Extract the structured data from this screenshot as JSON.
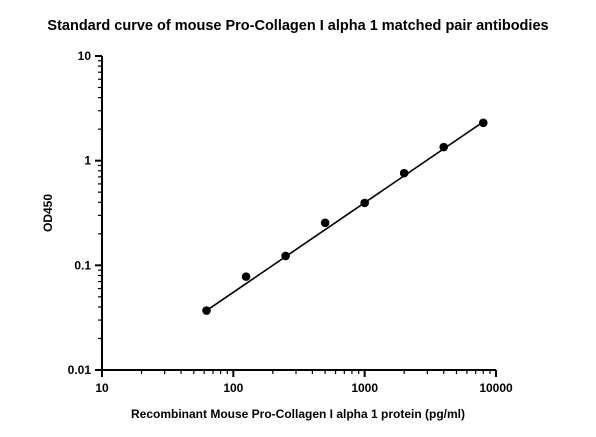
{
  "chart_data": {
    "type": "scatter",
    "title": "Standard curve of mouse Pro-Collagen I alpha 1 matched pair antibodies",
    "xlabel": "Recombinant Mouse Pro-Collagen I alpha 1 protein (pg/ml)",
    "ylabel": "OD450",
    "x_scale": "log",
    "y_scale": "log",
    "xlim": [
      10,
      10000
    ],
    "ylim": [
      0.01,
      10
    ],
    "x_ticks": [
      "10",
      "100",
      "1000",
      "10000"
    ],
    "y_ticks": [
      "0.01",
      "0.1",
      "1",
      "10"
    ],
    "grid": false,
    "series": [
      {
        "x": [
          62.5,
          125,
          250,
          500,
          1000,
          2000,
          4000,
          8000
        ],
        "y": [
          0.037,
          0.078,
          0.123,
          0.255,
          0.395,
          0.76,
          1.35,
          2.3
        ]
      }
    ],
    "fit_line": {
      "x": [
        62.5,
        8000
      ],
      "y": [
        0.037,
        2.35
      ]
    }
  },
  "colors": {
    "axis": "#000000",
    "points": "#000000",
    "line": "#000000"
  }
}
